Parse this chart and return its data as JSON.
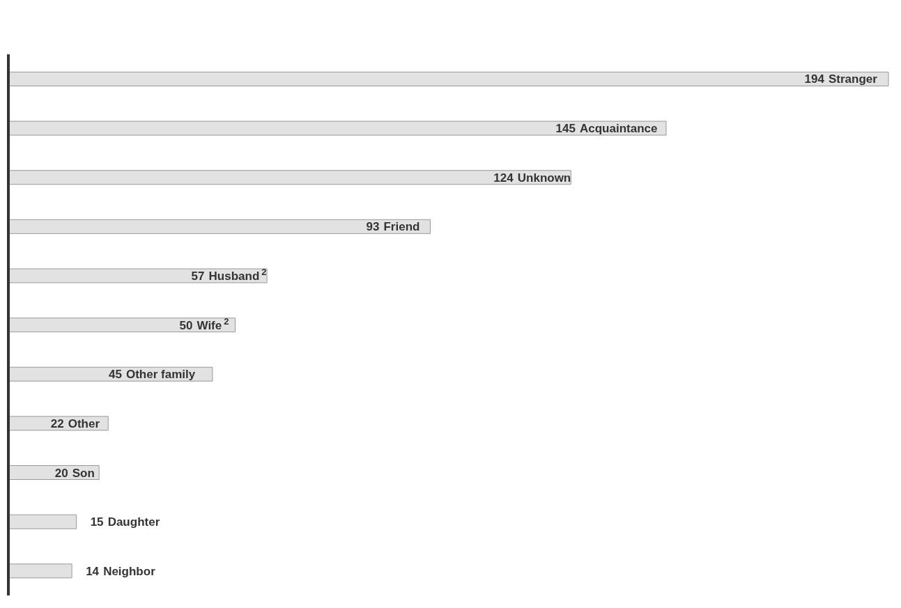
{
  "chart_data": {
    "type": "bar",
    "orientation": "horizontal",
    "categories": [
      "Stranger",
      "Acquaintance",
      "Unknown",
      "Friend",
      "Husband$^{2}$",
      "Wife$^{2}$",
      "Other family",
      "Other",
      "Son",
      "Daughter",
      "Neighbor"
    ],
    "values": [
      194,
      145,
      124,
      93,
      57,
      50,
      45,
      22,
      20,
      15,
      14
    ],
    "color": "#e2e2e2",
    "data_labels": true
  }
}
